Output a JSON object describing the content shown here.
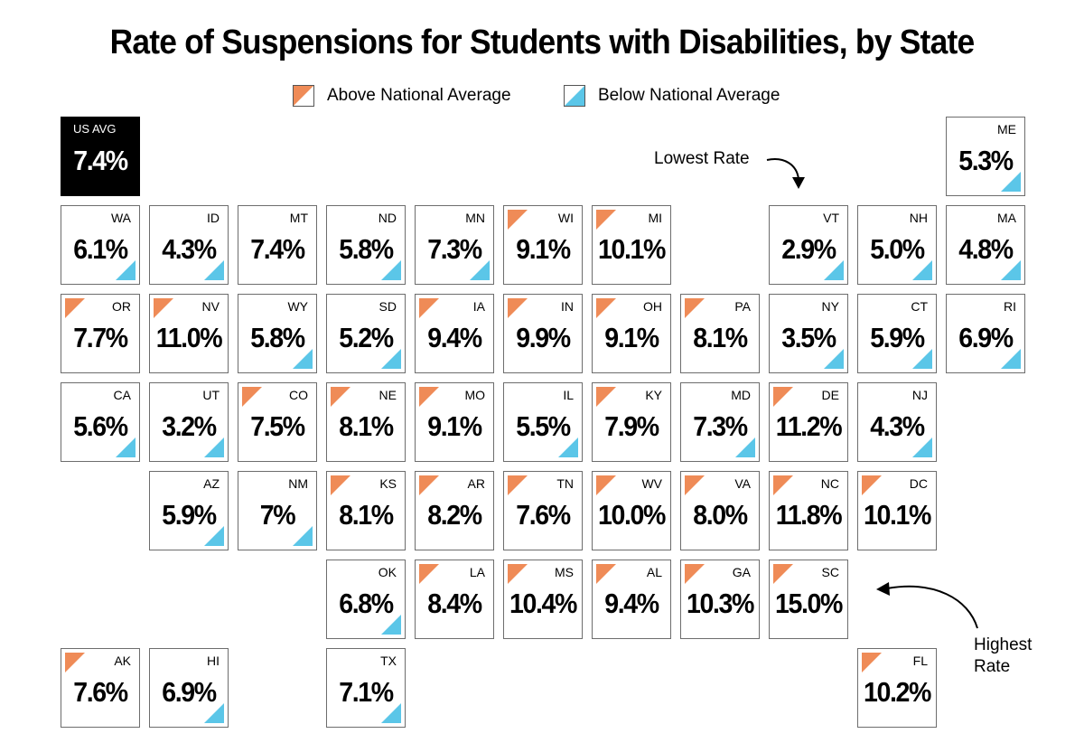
{
  "title": "Rate of Suspensions for Students with Disabilities, by State",
  "legend": {
    "above": {
      "label": "Above National Average",
      "color": "#ef8b57"
    },
    "below": {
      "label": "Below National Average",
      "color": "#5bc6e8"
    }
  },
  "national_average": {
    "label": "US AVG",
    "value": "7.4%"
  },
  "annotations": {
    "lowest": "Lowest Rate",
    "highest_line1": "Highest",
    "highest_line2": "Rate"
  },
  "states": [
    {
      "abbr": "ME",
      "value": "5.3%",
      "status": "below",
      "col": 10,
      "row": 0
    },
    {
      "abbr": "WA",
      "value": "6.1%",
      "status": "below",
      "col": 0,
      "row": 1
    },
    {
      "abbr": "ID",
      "value": "4.3%",
      "status": "below",
      "col": 1,
      "row": 1
    },
    {
      "abbr": "MT",
      "value": "7.4%",
      "status": "equal",
      "col": 2,
      "row": 1
    },
    {
      "abbr": "ND",
      "value": "5.8%",
      "status": "below",
      "col": 3,
      "row": 1
    },
    {
      "abbr": "MN",
      "value": "7.3%",
      "status": "below",
      "col": 4,
      "row": 1
    },
    {
      "abbr": "WI",
      "value": "9.1%",
      "status": "above",
      "col": 5,
      "row": 1
    },
    {
      "abbr": "MI",
      "value": "10.1%",
      "status": "above",
      "col": 6,
      "row": 1
    },
    {
      "abbr": "VT",
      "value": "2.9%",
      "status": "below",
      "col": 8,
      "row": 1
    },
    {
      "abbr": "NH",
      "value": "5.0%",
      "status": "below",
      "col": 9,
      "row": 1
    },
    {
      "abbr": "MA",
      "value": "4.8%",
      "status": "below",
      "col": 10,
      "row": 1
    },
    {
      "abbr": "OR",
      "value": "7.7%",
      "status": "above",
      "col": 0,
      "row": 2
    },
    {
      "abbr": "NV",
      "value": "11.0%",
      "status": "above",
      "col": 1,
      "row": 2
    },
    {
      "abbr": "WY",
      "value": "5.8%",
      "status": "below",
      "col": 2,
      "row": 2
    },
    {
      "abbr": "SD",
      "value": "5.2%",
      "status": "below",
      "col": 3,
      "row": 2
    },
    {
      "abbr": "IA",
      "value": "9.4%",
      "status": "above",
      "col": 4,
      "row": 2
    },
    {
      "abbr": "IN",
      "value": "9.9%",
      "status": "above",
      "col": 5,
      "row": 2
    },
    {
      "abbr": "OH",
      "value": "9.1%",
      "status": "above",
      "col": 6,
      "row": 2
    },
    {
      "abbr": "PA",
      "value": "8.1%",
      "status": "above",
      "col": 7,
      "row": 2
    },
    {
      "abbr": "NY",
      "value": "3.5%",
      "status": "below",
      "col": 8,
      "row": 2
    },
    {
      "abbr": "CT",
      "value": "5.9%",
      "status": "below",
      "col": 9,
      "row": 2
    },
    {
      "abbr": "RI",
      "value": "6.9%",
      "status": "below",
      "col": 10,
      "row": 2
    },
    {
      "abbr": "CA",
      "value": "5.6%",
      "status": "below",
      "col": 0,
      "row": 3
    },
    {
      "abbr": "UT",
      "value": "3.2%",
      "status": "below",
      "col": 1,
      "row": 3
    },
    {
      "abbr": "CO",
      "value": "7.5%",
      "status": "above",
      "col": 2,
      "row": 3
    },
    {
      "abbr": "NE",
      "value": "8.1%",
      "status": "above",
      "col": 3,
      "row": 3
    },
    {
      "abbr": "MO",
      "value": "9.1%",
      "status": "above",
      "col": 4,
      "row": 3
    },
    {
      "abbr": "IL",
      "value": "5.5%",
      "status": "below",
      "col": 5,
      "row": 3
    },
    {
      "abbr": "KY",
      "value": "7.9%",
      "status": "above",
      "col": 6,
      "row": 3
    },
    {
      "abbr": "MD",
      "value": "7.3%",
      "status": "below",
      "col": 7,
      "row": 3
    },
    {
      "abbr": "DE",
      "value": "11.2%",
      "status": "above",
      "col": 8,
      "row": 3
    },
    {
      "abbr": "NJ",
      "value": "4.3%",
      "status": "below",
      "col": 9,
      "row": 3
    },
    {
      "abbr": "AZ",
      "value": "5.9%",
      "status": "below",
      "col": 1,
      "row": 4
    },
    {
      "abbr": "NM",
      "value": "7%",
      "status": "below",
      "col": 2,
      "row": 4
    },
    {
      "abbr": "KS",
      "value": "8.1%",
      "status": "above",
      "col": 3,
      "row": 4
    },
    {
      "abbr": "AR",
      "value": "8.2%",
      "status": "above",
      "col": 4,
      "row": 4
    },
    {
      "abbr": "TN",
      "value": "7.6%",
      "status": "above",
      "col": 5,
      "row": 4
    },
    {
      "abbr": "WV",
      "value": "10.0%",
      "status": "above",
      "col": 6,
      "row": 4
    },
    {
      "abbr": "VA",
      "value": "8.0%",
      "status": "above",
      "col": 7,
      "row": 4
    },
    {
      "abbr": "NC",
      "value": "11.8%",
      "status": "above",
      "col": 8,
      "row": 4
    },
    {
      "abbr": "DC",
      "value": "10.1%",
      "status": "above",
      "col": 9,
      "row": 4
    },
    {
      "abbr": "OK",
      "value": "6.8%",
      "status": "below",
      "col": 3,
      "row": 5
    },
    {
      "abbr": "LA",
      "value": "8.4%",
      "status": "above",
      "col": 4,
      "row": 5
    },
    {
      "abbr": "MS",
      "value": "10.4%",
      "status": "above",
      "col": 5,
      "row": 5
    },
    {
      "abbr": "AL",
      "value": "9.4%",
      "status": "above",
      "col": 6,
      "row": 5
    },
    {
      "abbr": "GA",
      "value": "10.3%",
      "status": "above",
      "col": 7,
      "row": 5
    },
    {
      "abbr": "SC",
      "value": "15.0%",
      "status": "above",
      "col": 8,
      "row": 5
    },
    {
      "abbr": "AK",
      "value": "7.6%",
      "status": "above",
      "col": 0,
      "row": 6
    },
    {
      "abbr": "HI",
      "value": "6.9%",
      "status": "below",
      "col": 1,
      "row": 6
    },
    {
      "abbr": "TX",
      "value": "7.1%",
      "status": "below",
      "col": 3,
      "row": 6
    },
    {
      "abbr": "FL",
      "value": "10.2%",
      "status": "above",
      "col": 9,
      "row": 6
    }
  ]
}
